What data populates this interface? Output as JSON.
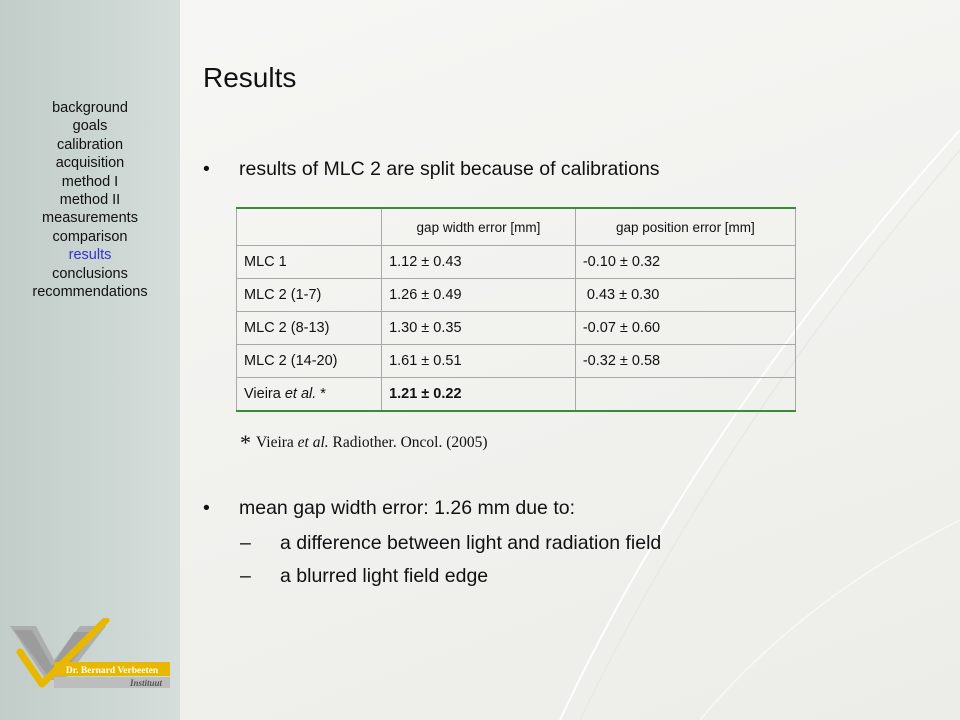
{
  "nav": [
    {
      "label": "background",
      "active": false
    },
    {
      "label": "goals",
      "active": false
    },
    {
      "label": "calibration",
      "active": false
    },
    {
      "label": "acquisition",
      "active": false
    },
    {
      "label": "method I",
      "active": false
    },
    {
      "label": "method II",
      "active": false
    },
    {
      "label": "measurements",
      "active": false
    },
    {
      "label": "comparison",
      "active": false
    },
    {
      "label": "results",
      "active": true
    },
    {
      "label": "conclusions",
      "active": false
    },
    {
      "label": "recommendations",
      "active": false
    }
  ],
  "title": "Results",
  "bullet1": "results of MLC 2 are split because of calibrations",
  "table": {
    "headers": [
      "",
      "gap width error [mm]",
      "gap position error [mm]"
    ],
    "rows": [
      [
        "MLC 1",
        "1.12 ± 0.43",
        "-0.10 ± 0.32"
      ],
      [
        "MLC 2 (1-7)",
        "1.26 ± 0.49",
        " 0.43 ± 0.30"
      ],
      [
        "MLC 2 (8-13)",
        "1.30 ± 0.35",
        "-0.07 ± 0.60"
      ],
      [
        "MLC 2 (14-20)",
        "1.61 ± 0.51",
        "-0.32 ± 0.58"
      ]
    ],
    "last_row": {
      "label_prefix": "Vieira ",
      "label_italic": "et al.",
      "label_suffix": " *",
      "width": "1.21 ± 0.22",
      "position": ""
    }
  },
  "footnote": {
    "star": "*",
    "author": "Vieira ",
    "italic": "et al.",
    "source": " Radiother. Oncol. (2005)"
  },
  "bullet2": "mean gap width error: 1.26 mm due to:",
  "sub_bullets": [
    "a difference between light and radiation field",
    "a blurred light field edge"
  ],
  "bullet_symbol": "•",
  "dash_symbol": "–",
  "logo": {
    "line1": "Dr. Bernard Verbeeten",
    "line2": "Instituut"
  },
  "colors": {
    "sidebar": "#c8d2cf",
    "active_nav": "#3333cc",
    "table_rule": "#3a8a3a",
    "logo_gold": "#e8b800"
  }
}
